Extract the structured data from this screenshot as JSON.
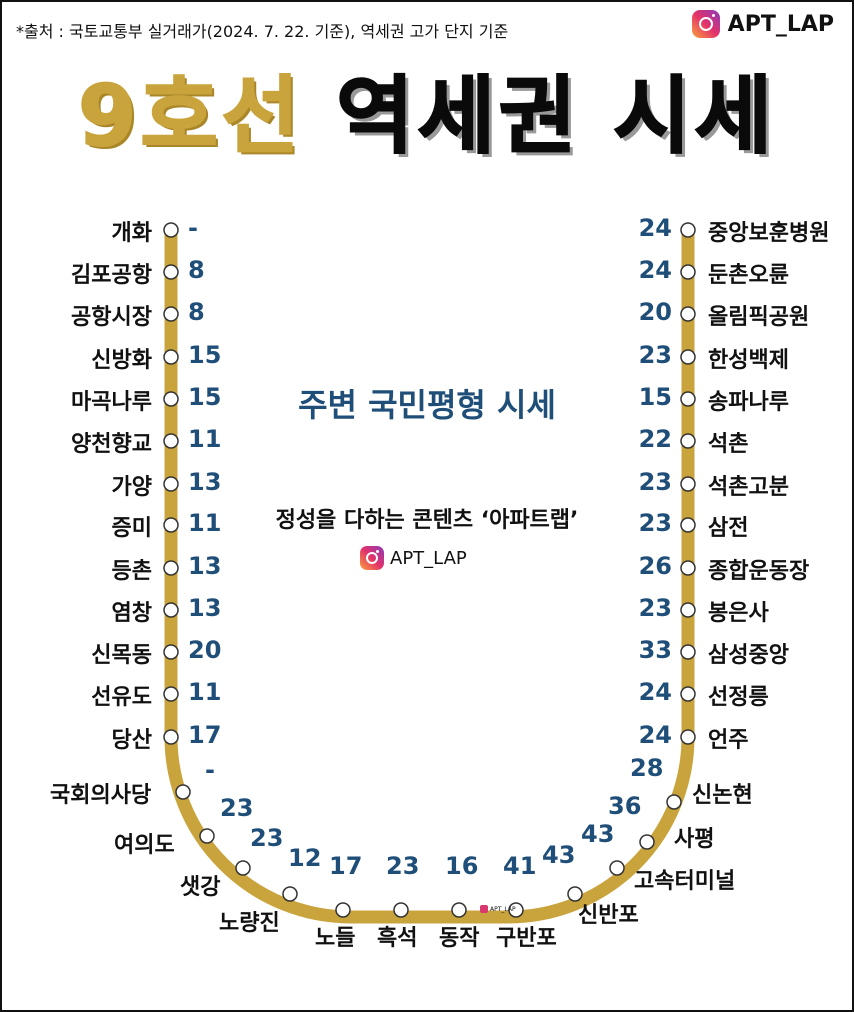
{
  "source": "*출처 : 국토교통부 실거래가(2024. 7. 22. 기준), 역세권 고가 단지 기준",
  "brand": "APT_LAP",
  "title": {
    "line": "9호선",
    "rest": "역세권 시세"
  },
  "subtitle": "주변 국민평형 시세",
  "tagline": "정성을 다하는 콘텐츠 ‘아파트랩’",
  "colors": {
    "track": "#c9a33c",
    "price": "#1f4e79",
    "title_gold": "#c9a33c"
  },
  "stations": [
    {
      "name": "개화",
      "price": "-"
    },
    {
      "name": "김포공항",
      "price": "8"
    },
    {
      "name": "공항시장",
      "price": "8"
    },
    {
      "name": "신방화",
      "price": "15"
    },
    {
      "name": "마곡나루",
      "price": "15"
    },
    {
      "name": "양천향교",
      "price": "11"
    },
    {
      "name": "가양",
      "price": "13"
    },
    {
      "name": "증미",
      "price": "11"
    },
    {
      "name": "등촌",
      "price": "13"
    },
    {
      "name": "염창",
      "price": "13"
    },
    {
      "name": "신목동",
      "price": "20"
    },
    {
      "name": "선유도",
      "price": "11"
    },
    {
      "name": "당산",
      "price": "17"
    },
    {
      "name": "국회의사당",
      "price": "-"
    },
    {
      "name": "여의도",
      "price": "23"
    },
    {
      "name": "샛강",
      "price": "23"
    },
    {
      "name": "노량진",
      "price": "12"
    },
    {
      "name": "노들",
      "price": "17"
    },
    {
      "name": "흑석",
      "price": "23"
    },
    {
      "name": "동작",
      "price": "16"
    },
    {
      "name": "구반포",
      "price": "41"
    },
    {
      "name": "신반포",
      "price": "43"
    },
    {
      "name": "고속터미널",
      "price": "43"
    },
    {
      "name": "사평",
      "price": "36"
    },
    {
      "name": "신논현",
      "price": "28"
    },
    {
      "name": "언주",
      "price": "24"
    },
    {
      "name": "선정릉",
      "price": "24"
    },
    {
      "name": "삼성중앙",
      "price": "33"
    },
    {
      "name": "봉은사",
      "price": "23"
    },
    {
      "name": "종합운동장",
      "price": "26"
    },
    {
      "name": "삼전",
      "price": "23"
    },
    {
      "name": "석촌고분",
      "price": "23"
    },
    {
      "name": "석촌",
      "price": "22"
    },
    {
      "name": "송파나루",
      "price": "15"
    },
    {
      "name": "한성백제",
      "price": "23"
    },
    {
      "name": "올림픽공원",
      "price": "20"
    },
    {
      "name": "둔촌오륜",
      "price": "24"
    },
    {
      "name": "중앙보훈병원",
      "price": "24"
    }
  ]
}
